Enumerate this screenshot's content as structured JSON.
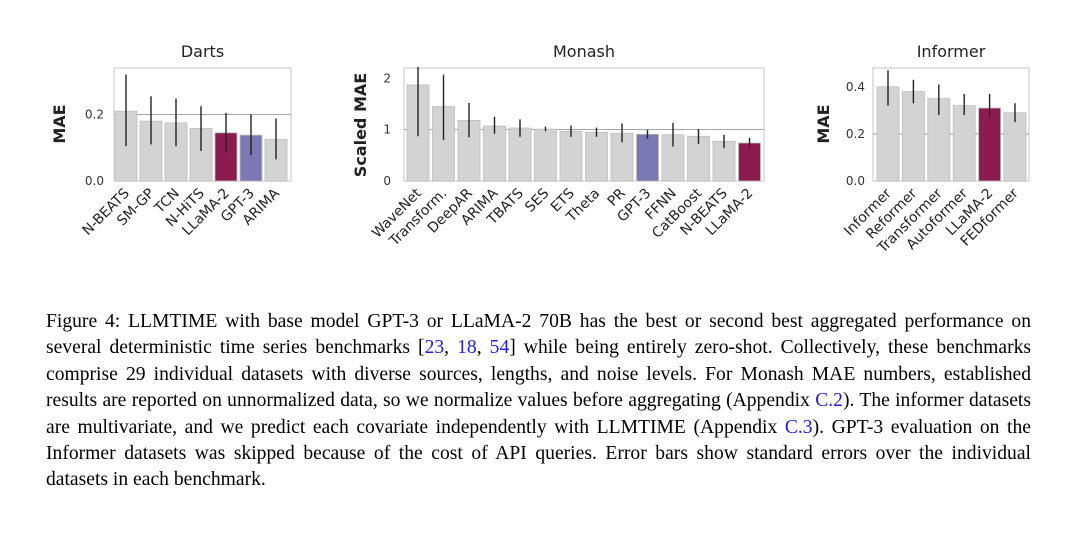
{
  "colors": {
    "bar_default": "#d3d3d3",
    "bar_gpt3": "#7b78b4",
    "bar_llama": "#8c1c4f",
    "frame": "#d9d9d9",
    "error_bar": "#222222",
    "link": "#1f1fdf"
  },
  "chart_data": [
    {
      "type": "bar",
      "title": "Darts",
      "ylabel": "MAE",
      "ylim": [
        0,
        0.34
      ],
      "yticks": [
        0.0,
        0.2
      ],
      "ytick_labels": [
        "0.0",
        "0.2"
      ],
      "refline": 0.2,
      "categories": [
        "N-BEATS",
        "SM-GP",
        "TCN",
        "N-HiTS",
        "LLaMA-2",
        "GPT-3",
        "ARIMA"
      ],
      "values": [
        0.21,
        0.18,
        0.175,
        0.158,
        0.145,
        0.138,
        0.125
      ],
      "err_low": [
        0.105,
        0.11,
        0.105,
        0.09,
        0.085,
        0.078,
        0.065
      ],
      "err_high": [
        0.32,
        0.255,
        0.248,
        0.225,
        0.205,
        0.2,
        0.188
      ],
      "highlight": {
        "LLaMA-2": "bar_llama",
        "GPT-3": "bar_gpt3"
      }
    },
    {
      "type": "bar",
      "title": "Monash",
      "ylabel": "Scaled MAE",
      "ylim": [
        0,
        2.2
      ],
      "yticks": [
        0,
        1,
        2
      ],
      "ytick_labels": [
        "0",
        "1",
        "2"
      ],
      "refline": 1.0,
      "categories": [
        "WaveNet",
        "Transform.",
        "DeepAR",
        "ARIMA",
        "TBATS",
        "SES",
        "ETS",
        "Theta",
        "PR",
        "GPT-3",
        "FFNN",
        "CatBoost",
        "N-BEATS",
        "LLaMA-2"
      ],
      "values": [
        1.87,
        1.45,
        1.18,
        1.07,
        1.03,
        1.01,
        0.97,
        0.95,
        0.93,
        0.91,
        0.9,
        0.87,
        0.77,
        0.74
      ],
      "err_low": [
        0.87,
        0.8,
        0.85,
        0.92,
        0.86,
        0.97,
        0.86,
        0.86,
        0.75,
        0.82,
        0.67,
        0.72,
        0.64,
        0.65
      ],
      "err_high": [
        2.22,
        2.07,
        1.52,
        1.25,
        1.2,
        1.06,
        1.08,
        1.04,
        1.12,
        1.0,
        1.13,
        1.01,
        0.9,
        0.84
      ],
      "highlight": {
        "GPT-3": "bar_gpt3",
        "LLaMA-2": "bar_llama"
      }
    },
    {
      "type": "bar",
      "title": "Informer",
      "ylabel": "MAE",
      "ylim": [
        0,
        0.48
      ],
      "yticks": [
        0.0,
        0.2,
        0.4
      ],
      "ytick_labels": [
        "0.0",
        "0.2",
        "0.4"
      ],
      "refline": 0.2,
      "categories": [
        "Informer",
        "Reformer",
        "Transformer",
        "Autoformer",
        "LLaMA-2",
        "FEDformer"
      ],
      "values": [
        0.4,
        0.38,
        0.35,
        0.32,
        0.31,
        0.29
      ],
      "err_low": [
        0.32,
        0.33,
        0.28,
        0.28,
        0.27,
        0.25
      ],
      "err_high": [
        0.47,
        0.43,
        0.41,
        0.37,
        0.37,
        0.33
      ],
      "highlight": {
        "LLaMA-2": "bar_llama"
      }
    }
  ],
  "caption": {
    "label": "Figure 4: ",
    "brand_prefix": "LLMT",
    "brand_suffix": "IME",
    "part1": " with base model GPT-3 or LLaMA-2 70B has the best or second best aggregated performance on several deterministic time series benchmarks [",
    "ref1": "23",
    "sep1": ", ",
    "ref2": "18",
    "sep2": ", ",
    "ref3": "54",
    "part2": "] while being entirely zero-shot. Collectively, these benchmarks comprise 29 individual datasets with diverse sources, lengths, and noise levels. For Monash MAE numbers, established results are reported on unnormalized data, so we normalize values before aggregating (Appendix ",
    "ref4": "C.2",
    "part3": "). The informer datasets are multivariate, and we predict each covariate independently with ",
    "part4": " (Appendix ",
    "ref5": "C.3",
    "part5": "). GPT-3 evaluation on the Informer datasets was skipped because of the cost of API queries. Error bars show standard errors over the individual datasets in each benchmark."
  }
}
